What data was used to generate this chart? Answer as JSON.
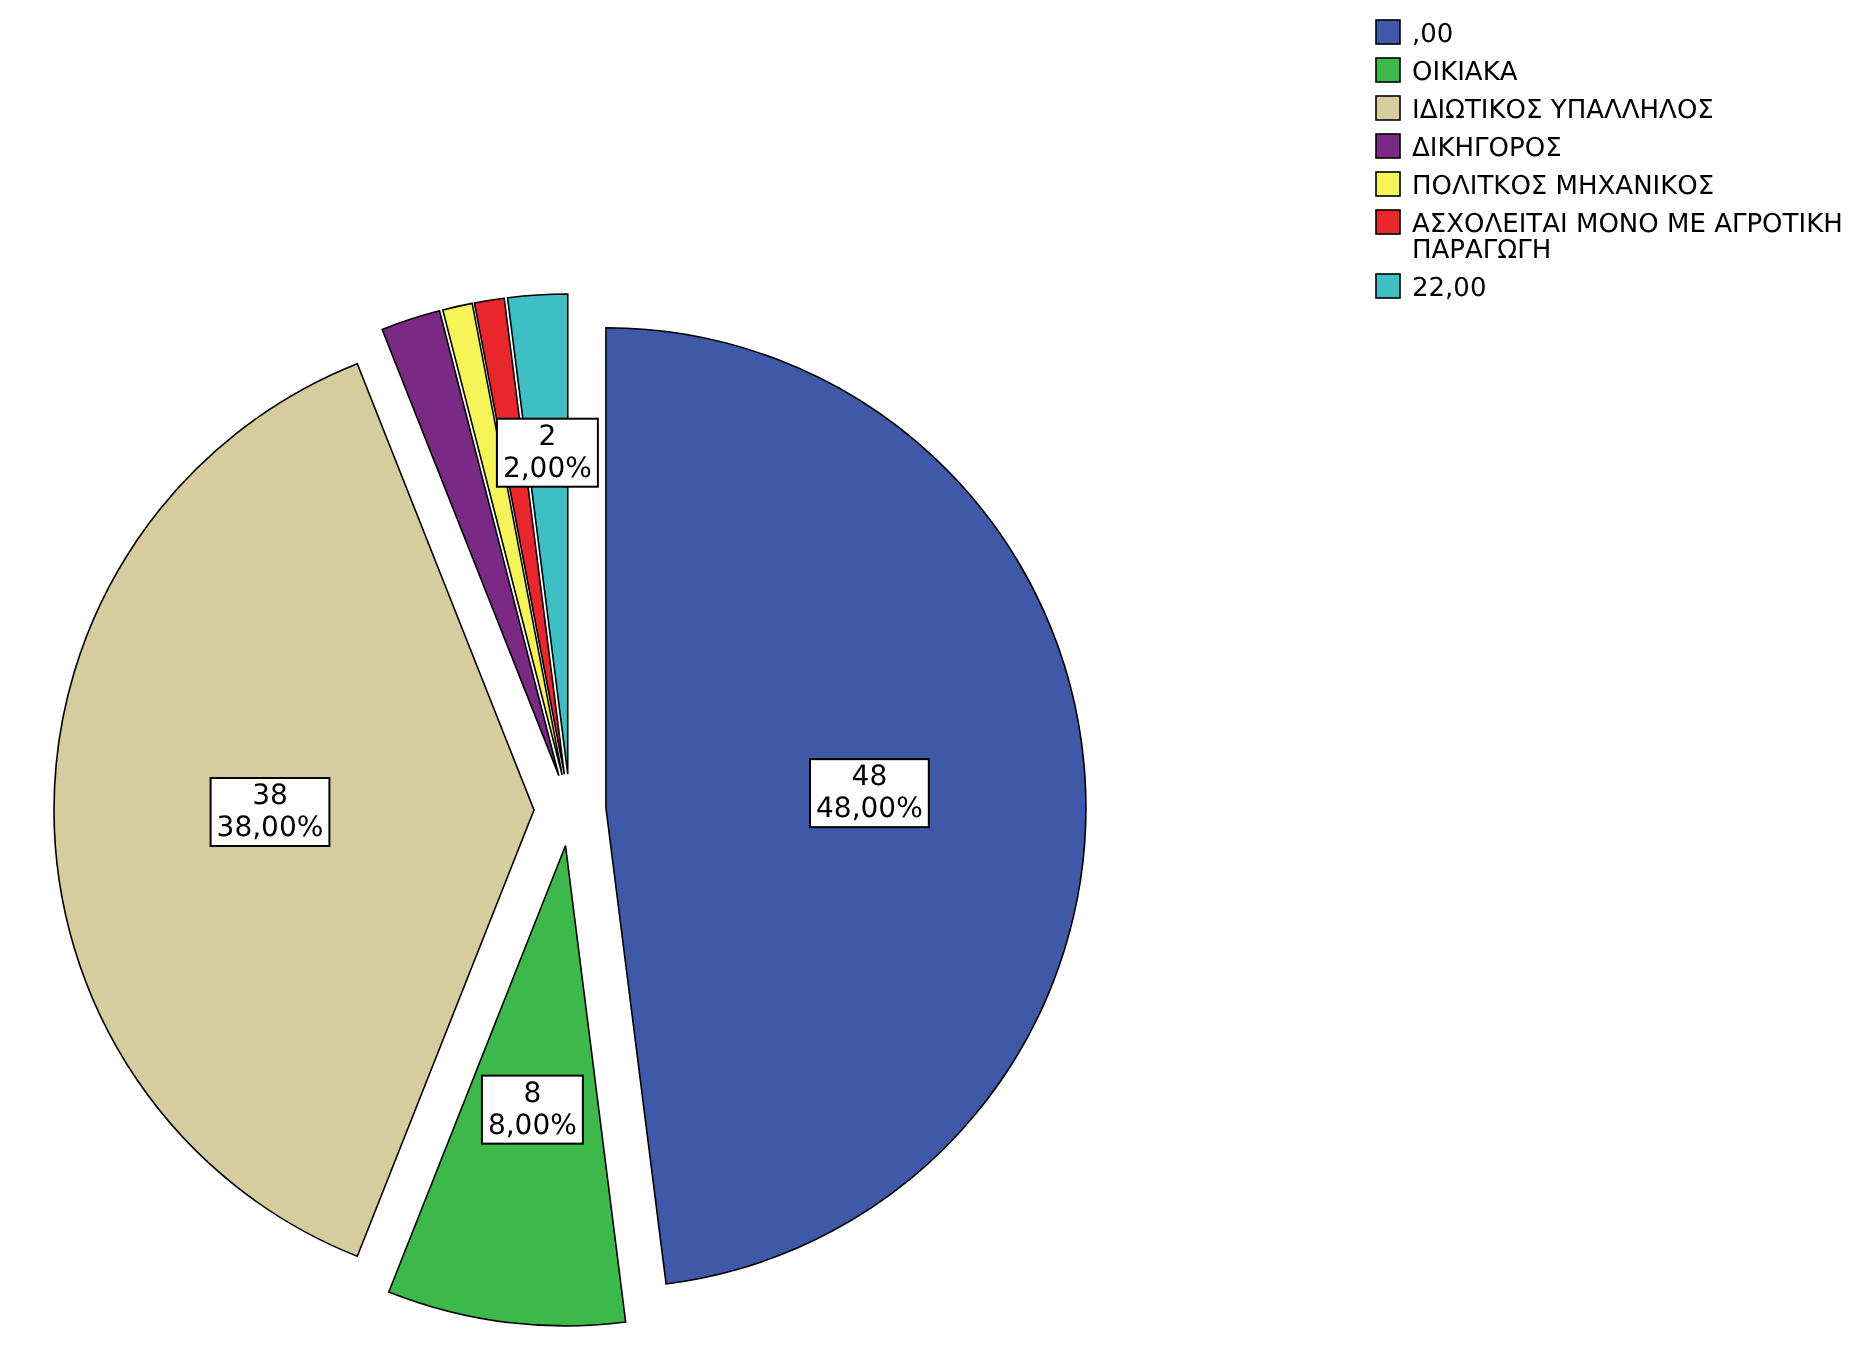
{
  "chart_data": {
    "type": "pie",
    "categories": [
      ",00",
      "ΟΙΚΙΑΚΑ",
      "ΙΔΙΩΤΙΚΟΣ ΥΠΑΛΛΗΛΟΣ",
      "ΔΙΚΗΓΟΡΟΣ",
      "ΠΟΛΙΤΚΟΣ ΜΗΧΑΝΙΚΟΣ",
      "ΑΣΧΟΛΕΙΤΑΙ ΜΟΝΟ ΜΕ ΑΓΡΟΤΙΚΗ ΠΑΡΑΓΩΓΗ",
      "22,00"
    ],
    "values": [
      48,
      8,
      38,
      2,
      1,
      1,
      2
    ],
    "colors": [
      "#3f59a8",
      "#3cb94a",
      "#d6cc9d",
      "#7b2a84",
      "#f5f55a",
      "#e8262c",
      "#3ebfc4"
    ],
    "value_labels": [
      "48\n48,00%",
      "8\n8,00%",
      "38\n38,00%",
      null,
      null,
      null,
      "2\n2,00%"
    ],
    "legend": "top right"
  }
}
